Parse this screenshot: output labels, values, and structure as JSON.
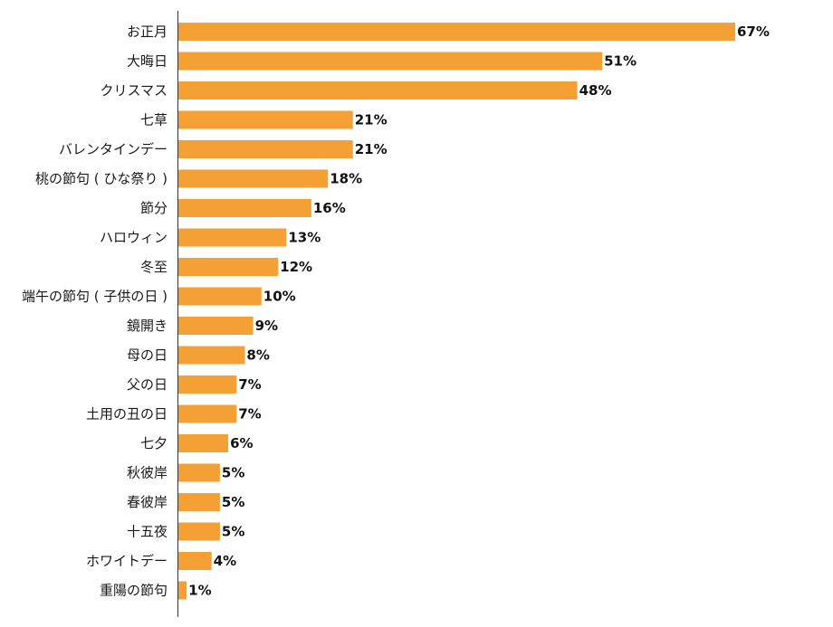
{
  "chart_data": {
    "type": "bar",
    "orientation": "horizontal",
    "categories": [
      "お正月",
      "大晦日",
      "クリスマス",
      "七草",
      "バレンタインデー",
      "桃の節句 ( ひな祭り )",
      "節分",
      "ハロウィン",
      "冬至",
      "端午の節句 ( 子供の日 )",
      "鏡開き",
      "母の日",
      "父の日",
      "土用の丑の日",
      "七夕",
      "秋彼岸",
      "春彼岸",
      "十五夜",
      "ホワイトデー",
      "重陽の節句"
    ],
    "values": [
      67,
      51,
      48,
      21,
      21,
      18,
      16,
      13,
      12,
      10,
      9,
      8,
      7,
      7,
      6,
      5,
      5,
      5,
      4,
      1
    ],
    "value_suffix": "%",
    "title": "",
    "xlabel": "",
    "ylabel": "",
    "xlim": [
      0,
      67
    ],
    "grid": false,
    "legend": "none",
    "bar_color": "#F4A034",
    "axis_color": "#333333"
  }
}
